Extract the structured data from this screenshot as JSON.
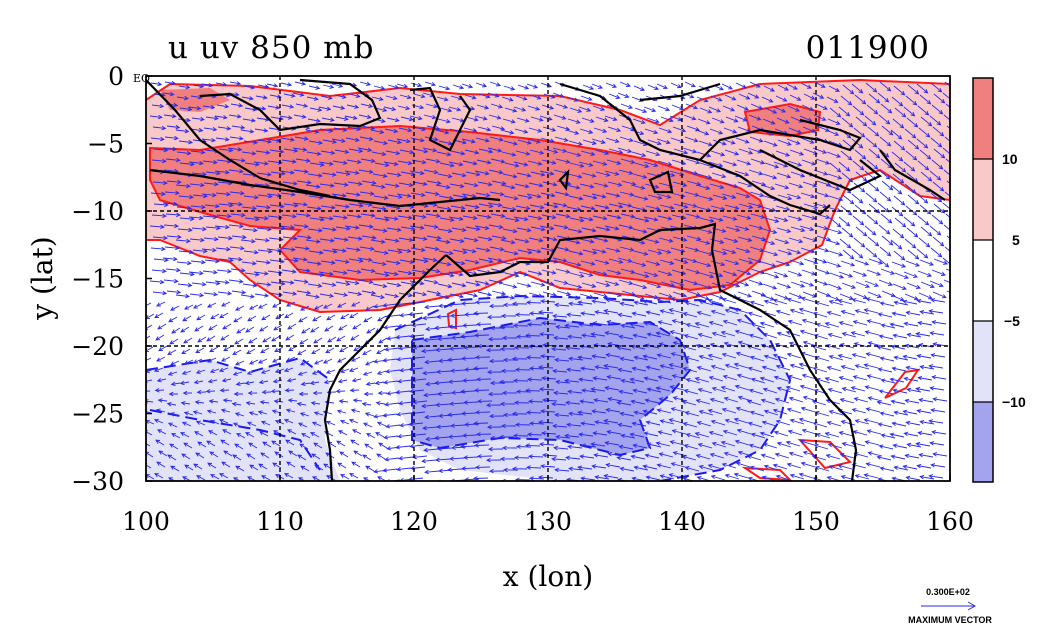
{
  "title": {
    "field": "u uv 850 mb",
    "date": "011900"
  },
  "map": {
    "x_label": "x (lon)",
    "y_label": "y (lat)",
    "x_ticks": [
      "100",
      "110",
      "120",
      "130",
      "140",
      "150",
      "160"
    ],
    "y_ticks": [
      "0",
      "−5",
      "−10",
      "−15",
      "−20",
      "−25",
      "−30"
    ],
    "equator_label": "EQ",
    "lon_range": [
      100,
      160
    ],
    "lat_range": [
      -30,
      0
    ],
    "grid_lons": [
      110,
      120,
      130,
      140,
      150
    ],
    "grid_lats": [
      -10,
      -20
    ]
  },
  "colorbar": {
    "labels": [
      "10",
      "5",
      "−5",
      "−10"
    ],
    "colors": [
      "#f07f7f",
      "#f9c8c8",
      "#ffffff",
      "#e2e2f8",
      "#a3a3ee"
    ]
  },
  "vector_key": {
    "value": "0.300E+02",
    "label": "MAXIMUM VECTOR"
  },
  "colors": {
    "strong_positive": "#f07f7f",
    "weak_positive": "#f9c8c8",
    "weak_negative": "#e2e2f8",
    "strong_negative": "#a3a3ee",
    "positive_contour": "#ff1a1a",
    "negative_contour": "#1a1aee",
    "vectors": "#2a2aee",
    "coastline": "#000000"
  }
}
